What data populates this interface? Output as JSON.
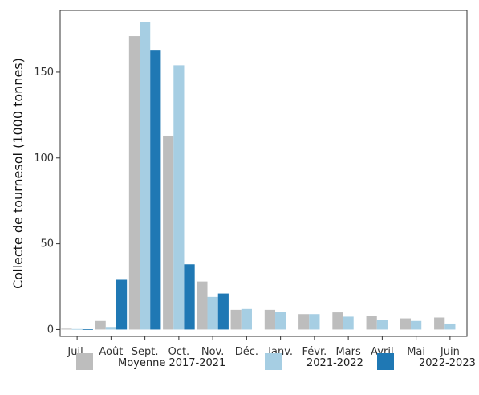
{
  "chart_data": {
    "type": "bar",
    "categories": [
      "Juil.",
      "Août",
      "Sept.",
      "Oct.",
      "Nov.",
      "Déc.",
      "Janv.",
      "Févr.",
      "Mars",
      "Avril",
      "Mai",
      "Juin"
    ],
    "series": [
      {
        "name": "Moyenne 2017-2021",
        "color": "#bdbdbd",
        "values": [
          0.5,
          5,
          171,
          113,
          28,
          11.5,
          11.5,
          9,
          10,
          8,
          6.5,
          7
        ]
      },
      {
        "name": "2021-2022",
        "color": "#a6cee3",
        "values": [
          0.3,
          1.5,
          179,
          154,
          19,
          12,
          10.5,
          9,
          7.5,
          5.5,
          5,
          3.5
        ]
      },
      {
        "name": "2022-2023",
        "color": "#1f78b4",
        "values": [
          0.2,
          29,
          163,
          38,
          21,
          null,
          null,
          null,
          null,
          null,
          null,
          null
        ]
      }
    ],
    "ylabel": "Collecte de tournesol (1000 tonnes)",
    "xlabel": "",
    "ylim": [
      -4,
      186
    ],
    "yticks": [
      0,
      50,
      100,
      150
    ],
    "grid": false,
    "legend_position": "bottom"
  }
}
